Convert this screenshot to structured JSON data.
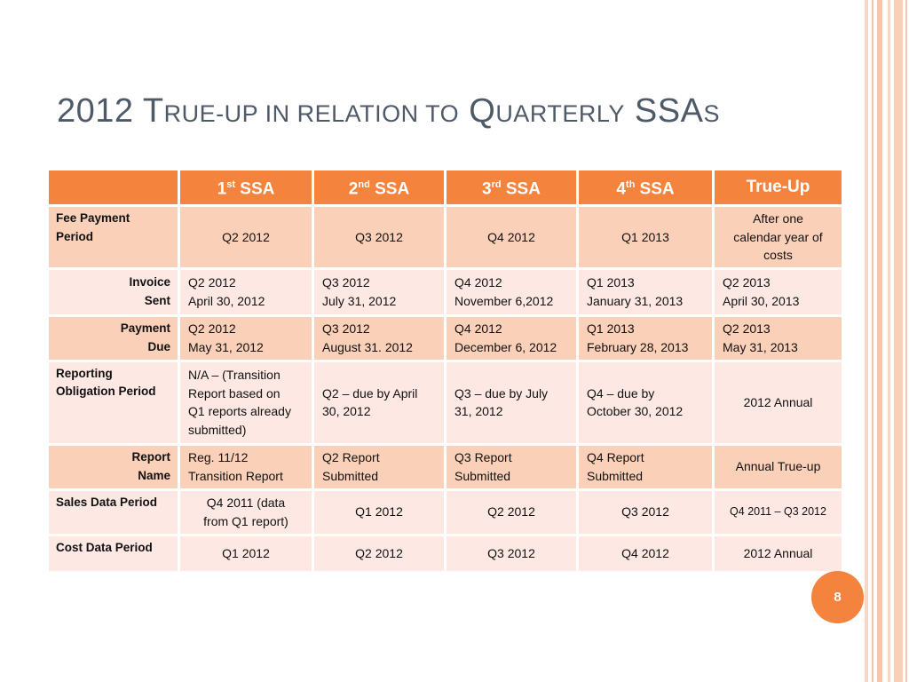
{
  "title": {
    "lead": "2012 T",
    "smallcaps1": "rue-up in relation to",
    "mid": " Q",
    "smallcaps2": "uarterly",
    "tail": " SSA",
    "smallcaps3": "s"
  },
  "table": {
    "headers": [
      {
        "num": "",
        "sup": "",
        "text": ""
      },
      {
        "num": "1",
        "sup": "st",
        "text": " SSA"
      },
      {
        "num": "2",
        "sup": "nd",
        "text": " SSA"
      },
      {
        "num": "3",
        "sup": "rd",
        "text": " SSA"
      },
      {
        "num": "4",
        "sup": "th",
        "text": " SSA"
      },
      {
        "num": "",
        "sup": "",
        "text": "True-Up"
      }
    ],
    "rows": {
      "fee_payment": {
        "label": [
          "Fee Payment",
          "Period"
        ],
        "cells": [
          [
            "Q2 2012"
          ],
          [
            "Q3 2012"
          ],
          [
            "Q4 2012"
          ],
          [
            "Q1 2013"
          ],
          [
            "After one",
            "calendar year of",
            "costs"
          ]
        ]
      },
      "invoice": {
        "label": [
          "Invoice",
          "Sent"
        ],
        "cells": [
          [
            "Q2 2012",
            "April 30, 2012"
          ],
          [
            "Q3 2012",
            "July 31, 2012"
          ],
          [
            "Q4  2012",
            "November 6,2012"
          ],
          [
            "Q1 2013",
            "January 31, 2013"
          ],
          [
            "Q2 2013",
            "April 30, 2013"
          ]
        ]
      },
      "payment": {
        "label": [
          "Payment",
          "Due"
        ],
        "cells": [
          [
            "Q2 2012",
            "May 31, 2012"
          ],
          [
            "Q3 2012",
            "August 31. 2012"
          ],
          [
            "Q4 2012",
            "December 6, 2012"
          ],
          [
            "Q1 2013",
            "February 28, 2013"
          ],
          [
            "Q2 2013",
            "May 31, 2013"
          ]
        ]
      },
      "reporting": {
        "label": [
          "Reporting",
          "Obligation Period"
        ],
        "cells": [
          [
            "N/A – (Transition",
            "Report based on",
            "Q1 reports already",
            "submitted)"
          ],
          [
            "Q2 – due by April",
            "30,  2012"
          ],
          [
            "Q3 – due by July",
            "31,  2012"
          ],
          [
            "Q4 – due by",
            "October 30, 2012"
          ],
          [
            "2012 Annual"
          ]
        ]
      },
      "report_name": {
        "label": [
          "Report",
          "Name"
        ],
        "cells": [
          [
            "Reg. 11/12",
            "Transition Report"
          ],
          [
            "Q2 Report",
            "Submitted"
          ],
          [
            "Q3 Report",
            "Submitted"
          ],
          [
            "Q4 Report",
            "Submitted"
          ],
          [
            "Annual True-up"
          ]
        ]
      },
      "sales_data": {
        "label": [
          "Sales Data Period"
        ],
        "cells": [
          [
            "Q4 2011 (data",
            "from Q1 report)"
          ],
          [
            "Q1 2012"
          ],
          [
            "Q2 2012"
          ],
          [
            "Q3 2012"
          ],
          [
            "Q4 2011 – Q3 2012"
          ]
        ]
      },
      "cost_data": {
        "label": [
          "Cost Data Period"
        ],
        "cells": [
          [
            "Q1 2012"
          ],
          [
            "Q2 2012"
          ],
          [
            "Q3 2012"
          ],
          [
            "Q4 2012"
          ],
          [
            "2012 Annual"
          ]
        ]
      }
    }
  },
  "page_number": "8",
  "colors": {
    "accent": "#f4833d",
    "row_light": "#fde8e3",
    "row_dark": "#fbd0b8",
    "title": "#4f5a68",
    "stripe": "#f7c4aa"
  }
}
